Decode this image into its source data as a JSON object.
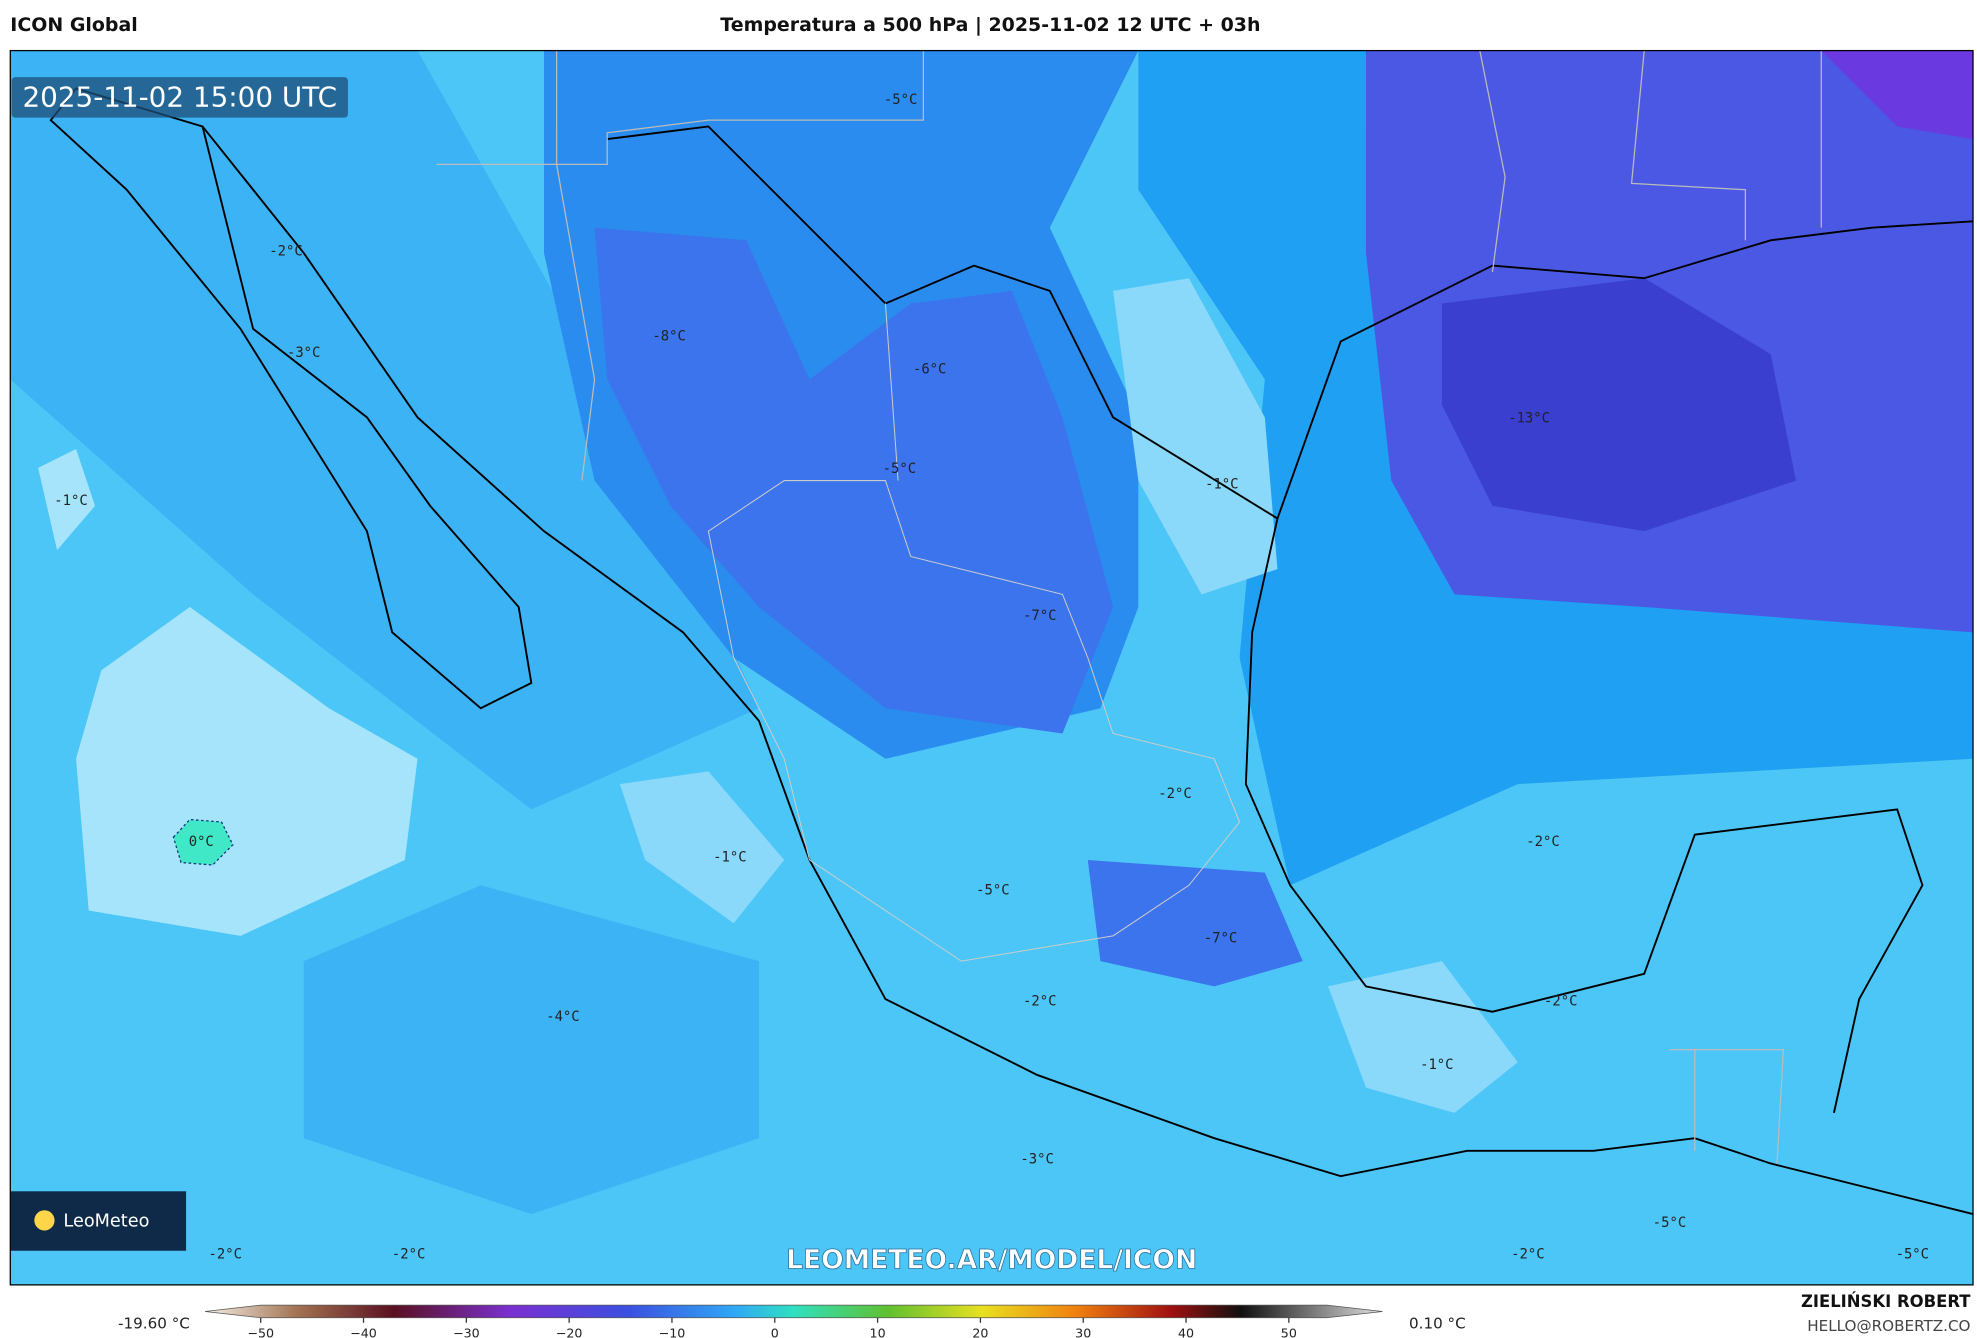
{
  "header": {
    "left": "ICON Global",
    "title": "Temperatura a 500 hPa | 2025-11-02 12 UTC + 03h"
  },
  "map": {
    "timestamp": "2025-11-02 15:00 UTC",
    "watermark": "LEOMETEO.AR/MODEL/ICON",
    "logo": "LeoMeteo",
    "labels": [
      "-5°C",
      "-2°C",
      "-8°C",
      "-3°C",
      "-6°C",
      "-13°C",
      "-1°C",
      "-5°C",
      "-1°C",
      "-7°C",
      "-2°C",
      "0°C",
      "-2°C",
      "-1°C",
      "-5°C",
      "-7°C",
      "-2°C",
      "-4°C",
      "-2°C",
      "-1°C",
      "-3°C",
      "-5°C",
      "-2°C",
      "-2°C",
      "-2°C",
      "-5°C"
    ]
  },
  "colorbar": {
    "min_label": "-19.60 °C",
    "max_label": "0.10 °C",
    "ticks": [
      "−50",
      "−40",
      "−30",
      "−20",
      "−10",
      "0",
      "10",
      "20",
      "30",
      "40",
      "50"
    ]
  },
  "footer": {
    "author": "ZIELIŃSKI ROBERT",
    "email": "HELLO@ROBERTZ.CO"
  }
}
